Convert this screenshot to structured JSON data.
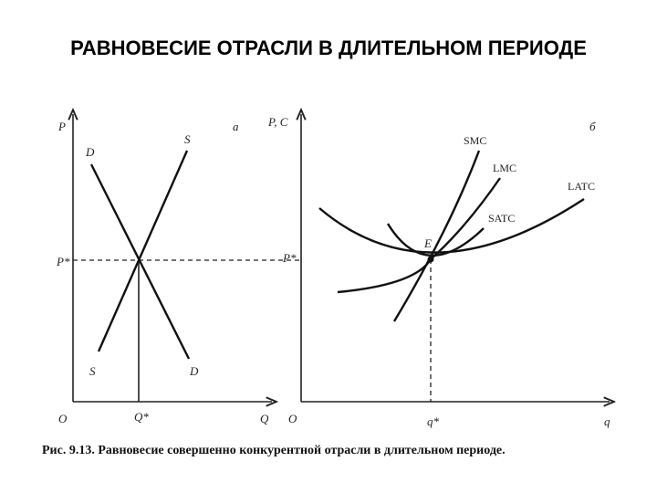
{
  "title": "РАВНОВЕСИЕ ОТРАСЛИ В ДЛИТЕЛЬНОМ ПЕРИОДЕ",
  "panel_a": {
    "y_axis": "P",
    "tag": "a",
    "demand_top": "D",
    "supply_top": "S",
    "price": "P*",
    "supply_bottom": "S",
    "demand_bottom": "D",
    "origin": "O",
    "quantity_eq": "Q*",
    "x_axis": "Q"
  },
  "panel_b": {
    "y_axis": "P, C",
    "tag": "б",
    "smc": "SMC",
    "lmc": "LMC",
    "latc": "LATC",
    "satc": "SATC",
    "equilibrium": "E",
    "price": "P*",
    "origin": "O",
    "quantity_eq": "q*",
    "x_axis": "q"
  },
  "caption": "Рис. 9.13. Равновесие совершенно конкурентной отрасли в длительном периоде."
}
